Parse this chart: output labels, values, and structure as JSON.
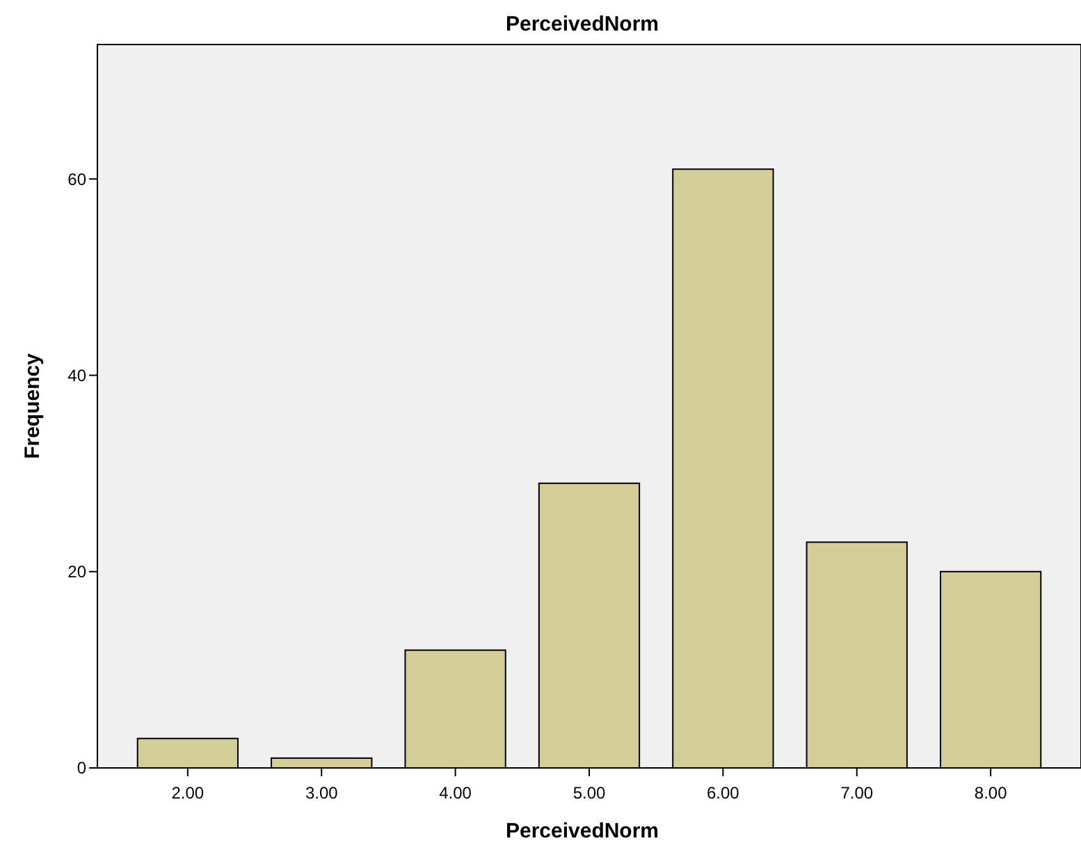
{
  "chart_data": {
    "type": "bar",
    "title": "PerceivedNorm",
    "xlabel": "PerceivedNorm",
    "ylabel": "Frequency",
    "categories": [
      "2.00",
      "3.00",
      "4.00",
      "5.00",
      "6.00",
      "7.00",
      "8.00"
    ],
    "values": [
      3,
      1,
      12,
      29,
      61,
      23,
      20
    ],
    "color": "#d3ce97",
    "ylim": [
      0,
      73.7
    ],
    "yticks": [
      0,
      20,
      40,
      60
    ],
    "grid": false
  }
}
